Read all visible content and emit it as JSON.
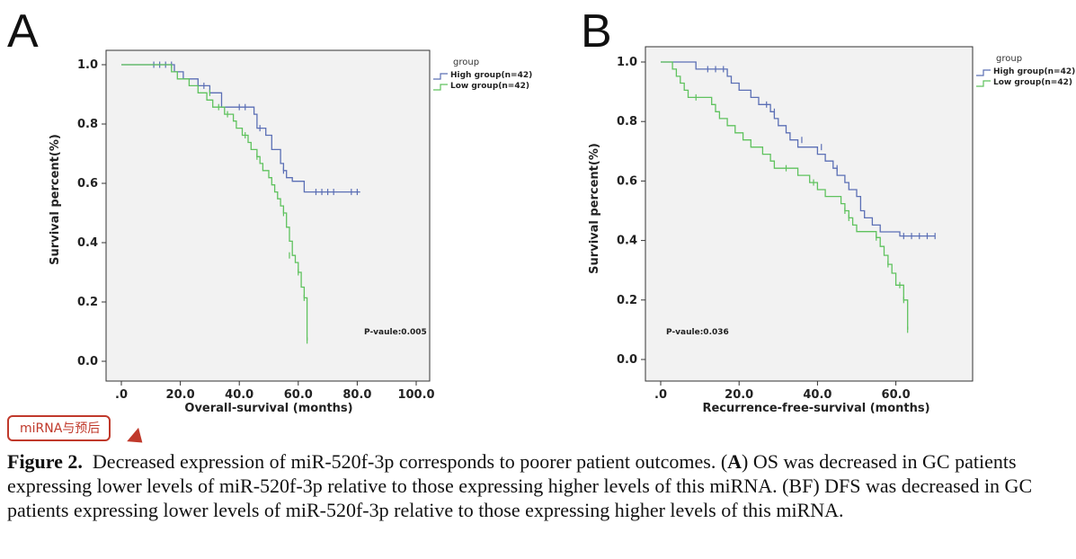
{
  "chart_data": [
    {
      "type": "line",
      "panel_label": "A",
      "xlabel": "Overall-survival (months)",
      "ylabel": "Survival percent(%)",
      "xlim": [
        0,
        100
      ],
      "ylim": [
        0,
        1
      ],
      "xticks": [
        0,
        20,
        40,
        60,
        80,
        100
      ],
      "xtick_labels": [
        ".0",
        "20.0",
        "40.0",
        "60.0",
        "80.0",
        "100.0"
      ],
      "yticks": [
        0,
        0.2,
        0.4,
        0.6,
        0.8,
        1.0
      ],
      "ytick_labels": [
        "0.0",
        "0.2",
        "0.4",
        "0.6",
        "0.8",
        "1.0"
      ],
      "grid": false,
      "legend_title": "group",
      "legend_position": "right",
      "annotation": "P-vaule:0.005",
      "series": [
        {
          "name": "High group(n=42)",
          "color": "#5b6fb5",
          "steps": [
            [
              0,
              1.0
            ],
            [
              18,
              0.976
            ],
            [
              21,
              0.952
            ],
            [
              26,
              0.929
            ],
            [
              30,
              0.905
            ],
            [
              34,
              0.857
            ],
            [
              45,
              0.833
            ],
            [
              46,
              0.786
            ],
            [
              49,
              0.762
            ],
            [
              51,
              0.714
            ],
            [
              54,
              0.667
            ],
            [
              55,
              0.643
            ],
            [
              56,
              0.619
            ],
            [
              58,
              0.607
            ],
            [
              62,
              0.571
            ],
            [
              81,
              0.571
            ]
          ],
          "censored": [
            [
              11,
              1.0
            ],
            [
              13,
              1.0
            ],
            [
              15,
              1.0
            ],
            [
              17,
              1.0
            ],
            [
              28,
              0.929
            ],
            [
              40,
              0.857
            ],
            [
              42,
              0.857
            ],
            [
              47,
              0.786
            ],
            [
              55,
              0.643
            ],
            [
              66,
              0.571
            ],
            [
              68,
              0.571
            ],
            [
              70,
              0.571
            ],
            [
              72,
              0.571
            ],
            [
              78,
              0.571
            ],
            [
              80,
              0.571
            ]
          ]
        },
        {
          "name": "Low group(n=42)",
          "color": "#5fc25e",
          "steps": [
            [
              0,
              1.0
            ],
            [
              17,
              0.976
            ],
            [
              19,
              0.952
            ],
            [
              23,
              0.929
            ],
            [
              26,
              0.905
            ],
            [
              29,
              0.881
            ],
            [
              31,
              0.857
            ],
            [
              35,
              0.833
            ],
            [
              38,
              0.81
            ],
            [
              39,
              0.786
            ],
            [
              41,
              0.762
            ],
            [
              43,
              0.738
            ],
            [
              44,
              0.714
            ],
            [
              46,
              0.69
            ],
            [
              47,
              0.667
            ],
            [
              48,
              0.643
            ],
            [
              50,
              0.619
            ],
            [
              51,
              0.595
            ],
            [
              52,
              0.571
            ],
            [
              53,
              0.548
            ],
            [
              54,
              0.524
            ],
            [
              55,
              0.5
            ],
            [
              56,
              0.452
            ],
            [
              57,
              0.405
            ],
            [
              58,
              0.357
            ],
            [
              59,
              0.333
            ],
            [
              60,
              0.3
            ],
            [
              61,
              0.25
            ],
            [
              62,
              0.214
            ],
            [
              63,
              0.07
            ]
          ],
          "censored": [
            [
              30,
              0.905
            ],
            [
              33,
              0.857
            ],
            [
              36,
              0.833
            ],
            [
              42,
              0.762
            ],
            [
              46,
              0.69
            ],
            [
              55,
              0.5
            ],
            [
              57,
              0.357
            ],
            [
              60,
              0.3
            ],
            [
              62,
              0.214
            ],
            [
              63,
              0.07
            ]
          ]
        }
      ]
    },
    {
      "type": "line",
      "panel_label": "B",
      "xlabel": "Recurrence-free-survival (months)",
      "ylabel": "Survival percent(%)",
      "xlim": [
        0,
        75
      ],
      "ylim": [
        0,
        1
      ],
      "xticks": [
        0,
        20,
        40,
        60
      ],
      "xtick_labels": [
        ".0",
        "20.0",
        "40.0",
        "60.0"
      ],
      "yticks": [
        0,
        0.2,
        0.4,
        0.6,
        0.8,
        1.0
      ],
      "ytick_labels": [
        "0.0",
        "0.2",
        "0.4",
        "0.6",
        "0.8",
        "1.0"
      ],
      "grid": false,
      "legend_title": "group",
      "legend_position": "right",
      "annotation": "P-vaule:0.036",
      "series": [
        {
          "name": "High group(n=42)",
          "color": "#5b6fb5",
          "steps": [
            [
              0,
              1.0
            ],
            [
              9,
              0.976
            ],
            [
              17,
              0.952
            ],
            [
              18,
              0.929
            ],
            [
              20,
              0.905
            ],
            [
              23,
              0.881
            ],
            [
              25,
              0.857
            ],
            [
              28,
              0.833
            ],
            [
              29,
              0.81
            ],
            [
              30,
              0.786
            ],
            [
              32,
              0.762
            ],
            [
              33,
              0.738
            ],
            [
              35,
              0.714
            ],
            [
              40,
              0.69
            ],
            [
              42,
              0.667
            ],
            [
              44,
              0.643
            ],
            [
              45,
              0.619
            ],
            [
              47,
              0.595
            ],
            [
              48,
              0.571
            ],
            [
              50,
              0.548
            ],
            [
              51,
              0.5
            ],
            [
              52,
              0.476
            ],
            [
              54,
              0.452
            ],
            [
              56,
              0.429
            ],
            [
              61,
              0.415
            ],
            [
              70,
              0.415
            ]
          ],
          "censored": [
            [
              12,
              0.976
            ],
            [
              14,
              0.976
            ],
            [
              16,
              0.976
            ],
            [
              27,
              0.857
            ],
            [
              29,
              0.833
            ],
            [
              36,
              0.738
            ],
            [
              41,
              0.714
            ],
            [
              45,
              0.643
            ],
            [
              62,
              0.415
            ],
            [
              64,
              0.415
            ],
            [
              66,
              0.415
            ],
            [
              68,
              0.415
            ],
            [
              70,
              0.415
            ]
          ]
        },
        {
          "name": "Low group(n=42)",
          "color": "#5fc25e",
          "steps": [
            [
              0,
              1.0
            ],
            [
              3,
              0.976
            ],
            [
              4,
              0.952
            ],
            [
              5,
              0.929
            ],
            [
              6,
              0.905
            ],
            [
              7,
              0.881
            ],
            [
              13,
              0.857
            ],
            [
              14,
              0.833
            ],
            [
              15,
              0.81
            ],
            [
              17,
              0.786
            ],
            [
              19,
              0.762
            ],
            [
              21,
              0.738
            ],
            [
              23,
              0.714
            ],
            [
              26,
              0.69
            ],
            [
              28,
              0.667
            ],
            [
              29,
              0.643
            ],
            [
              35,
              0.619
            ],
            [
              38,
              0.595
            ],
            [
              40,
              0.571
            ],
            [
              42,
              0.548
            ],
            [
              46,
              0.524
            ],
            [
              47,
              0.5
            ],
            [
              48,
              0.476
            ],
            [
              49,
              0.452
            ],
            [
              50,
              0.43
            ],
            [
              55,
              0.41
            ],
            [
              56,
              0.38
            ],
            [
              57,
              0.35
            ],
            [
              58,
              0.32
            ],
            [
              59,
              0.29
            ],
            [
              60,
              0.25
            ],
            [
              62,
              0.2
            ],
            [
              63,
              0.1
            ]
          ],
          "censored": [
            [
              9,
              0.881
            ],
            [
              32,
              0.643
            ],
            [
              39,
              0.595
            ],
            [
              47,
              0.5
            ],
            [
              48,
              0.476
            ],
            [
              55,
              0.41
            ],
            [
              58,
              0.32
            ],
            [
              61,
              0.25
            ],
            [
              62,
              0.2
            ],
            [
              63,
              0.1
            ]
          ]
        }
      ]
    }
  ],
  "tag": {
    "label": "miRNA与预后"
  },
  "caption": {
    "figure_label": "Figure 2.",
    "text_parts": [
      "Decreased expression of miR-520f-3p corresponds to poorer patient outcomes. (",
      "A",
      ") OS was decreased in GC patients expressing lower levels of miR-520f-3p relative to those expressing higher levels of this miRNA. (BF) DFS was decreased in GC patients expressing lower levels of miR-520f-3p relative to those expressing higher levels of this miRNA."
    ]
  }
}
